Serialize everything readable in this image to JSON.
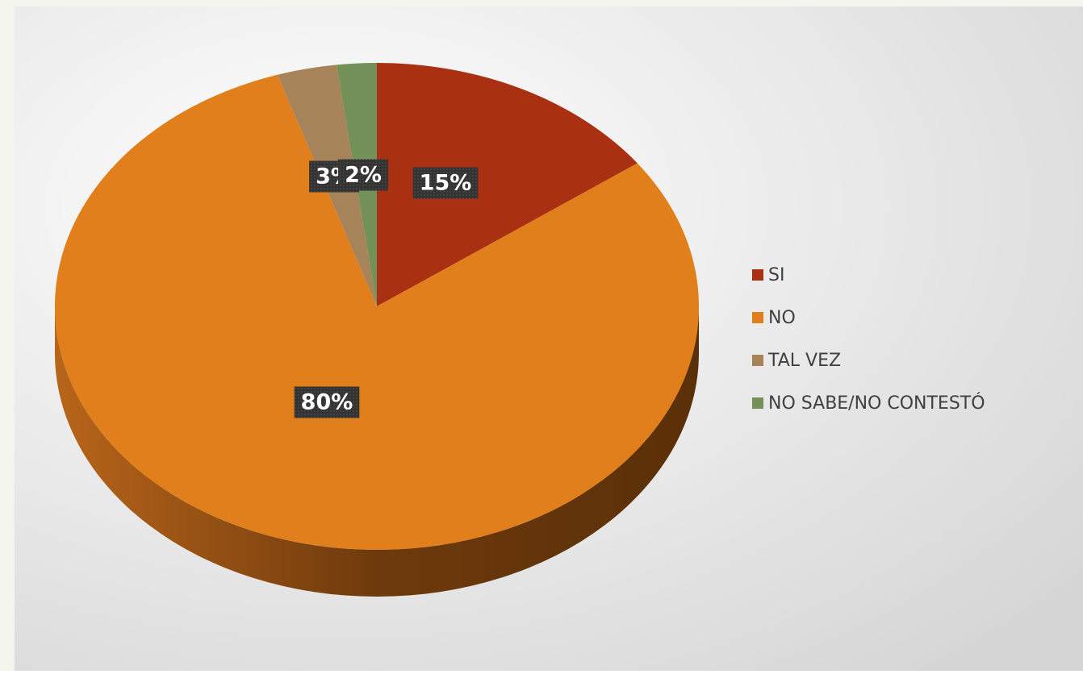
{
  "chart_data": {
    "type": "pie",
    "categories": [
      "SI",
      "NO",
      "TAL VEZ",
      "NO SABE/NO CONTESTÓ"
    ],
    "values": [
      15,
      80,
      3,
      2
    ],
    "value_labels": [
      "15%",
      "80%",
      "3%",
      "2%"
    ],
    "colors": [
      "#a93111",
      "#e07f1b",
      "#a7835a",
      "#74915a"
    ],
    "legend": "right"
  }
}
